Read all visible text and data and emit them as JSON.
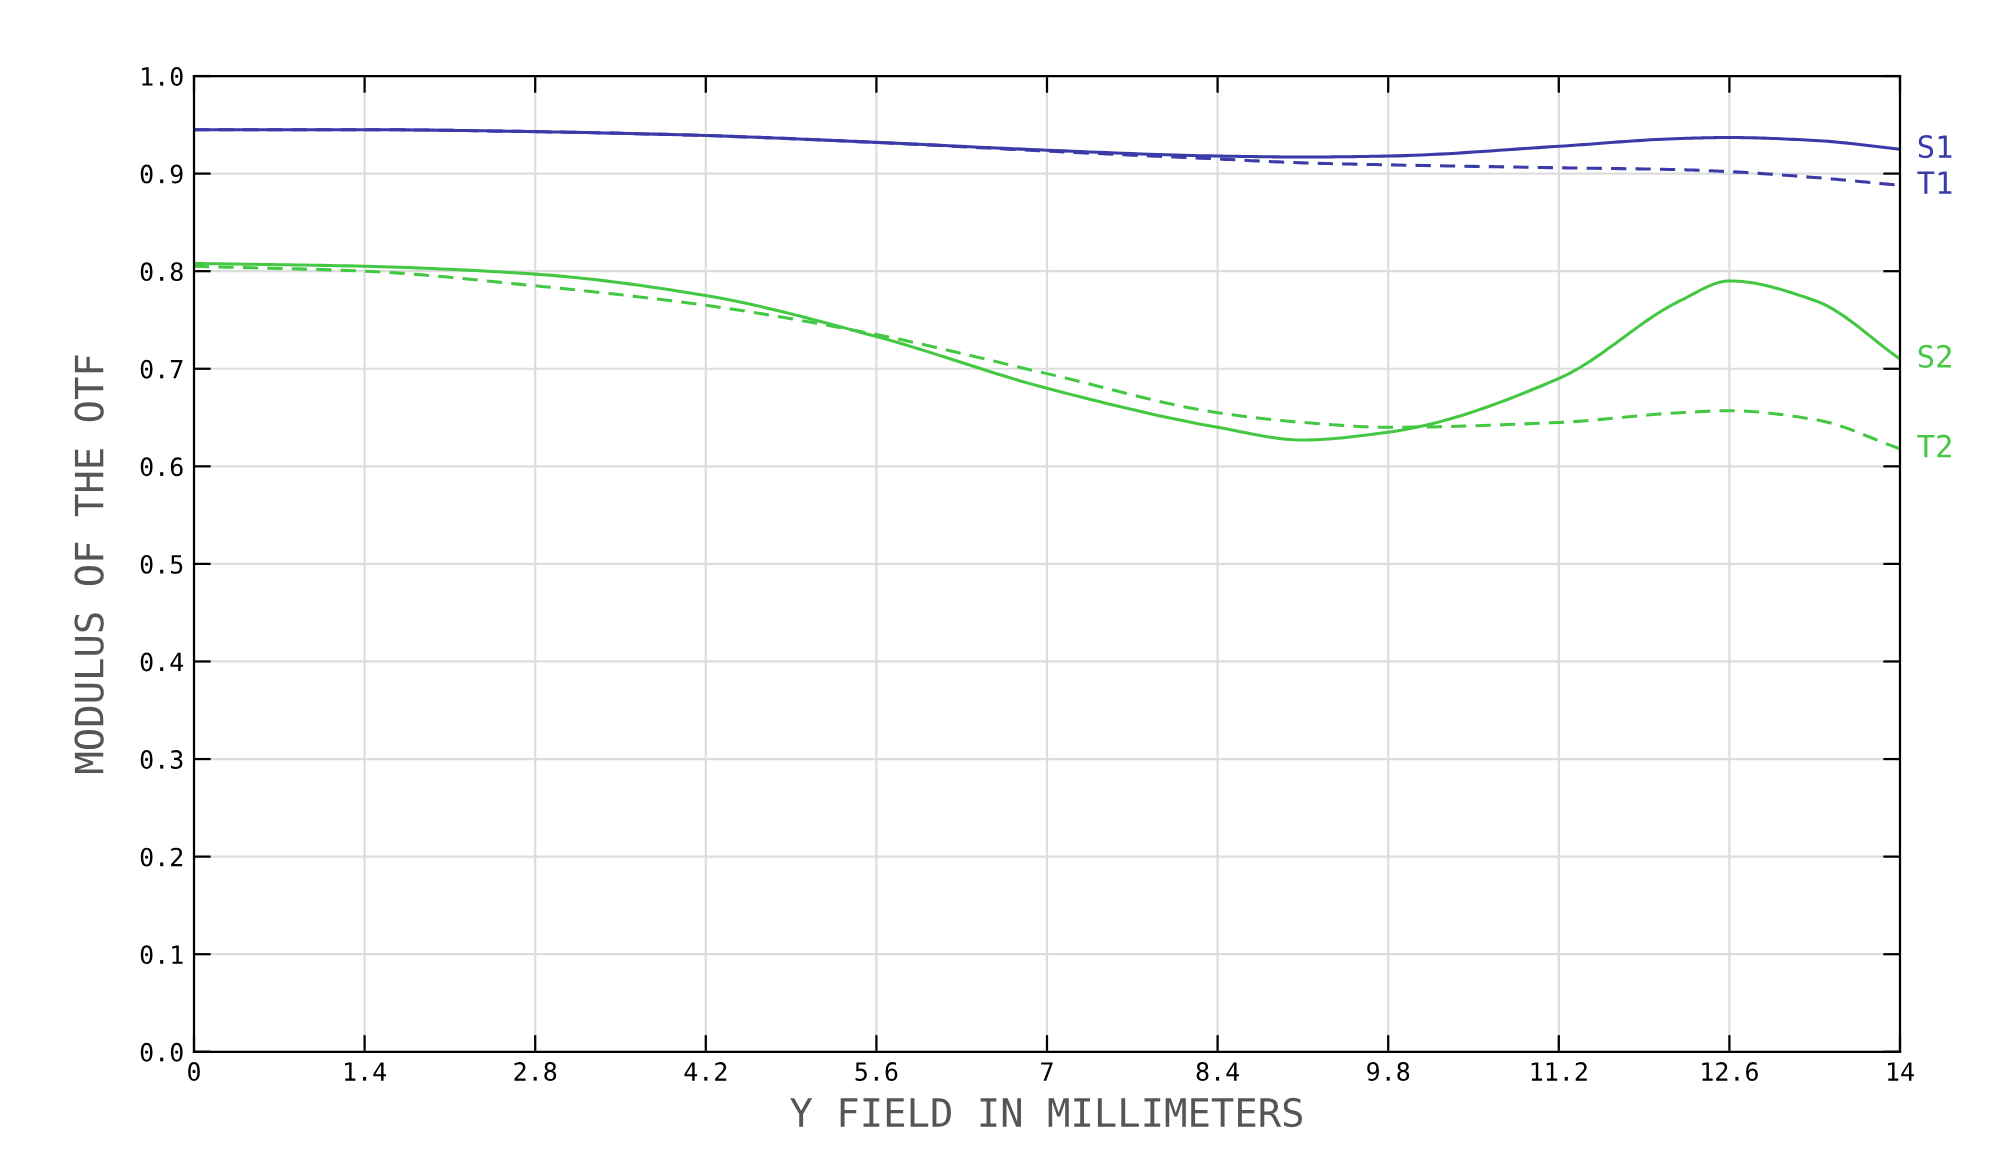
{
  "chart_data": {
    "type": "line",
    "xlabel": "Y FIELD IN MILLIMETERS",
    "ylabel": "MODULUS OF THE OTF",
    "x": [
      0,
      1.4,
      2.8,
      4.2,
      5.6,
      7,
      8.4,
      9.1,
      9.8,
      11.2,
      12.2,
      12.6,
      13.3,
      14
    ],
    "series": [
      {
        "name": "S1",
        "color": "#3a3aa8",
        "line_style": "solid",
        "values": [
          0.945,
          0.945,
          0.943,
          0.939,
          0.932,
          0.924,
          0.918,
          0.917,
          0.918,
          0.928,
          0.936,
          0.937,
          0.934,
          0.925
        ]
      },
      {
        "name": "T1",
        "color": "#3a3aa8",
        "line_style": "dashed",
        "values": [
          0.945,
          0.945,
          0.943,
          0.939,
          0.932,
          0.923,
          0.915,
          0.911,
          0.909,
          0.906,
          0.904,
          0.902,
          0.896,
          0.888
        ]
      },
      {
        "name": "S2",
        "color": "#44c844",
        "line_style": "solid",
        "values": [
          0.808,
          0.805,
          0.797,
          0.775,
          0.733,
          0.68,
          0.64,
          0.627,
          0.635,
          0.69,
          0.77,
          0.79,
          0.77,
          0.71
        ]
      },
      {
        "name": "T2",
        "color": "#44c844",
        "line_style": "dashed",
        "values": [
          0.805,
          0.8,
          0.785,
          0.765,
          0.735,
          0.695,
          0.655,
          0.645,
          0.64,
          0.645,
          0.655,
          0.657,
          0.648,
          0.618
        ]
      }
    ],
    "xlim": [
      0,
      14
    ],
    "ylim": [
      0,
      1.0
    ],
    "xticks": [
      0,
      1.4,
      2.8,
      4.2,
      5.6,
      7,
      8.4,
      9.8,
      11.2,
      12.6,
      14
    ],
    "yticks": [
      {
        "value": 0,
        "label": "0.0"
      },
      0.1,
      0.2,
      0.3,
      0.4,
      0.5,
      0.6,
      0.7,
      0.8,
      0.9,
      {
        "value": 1,
        "label": "1.0"
      }
    ],
    "grid": true
  }
}
